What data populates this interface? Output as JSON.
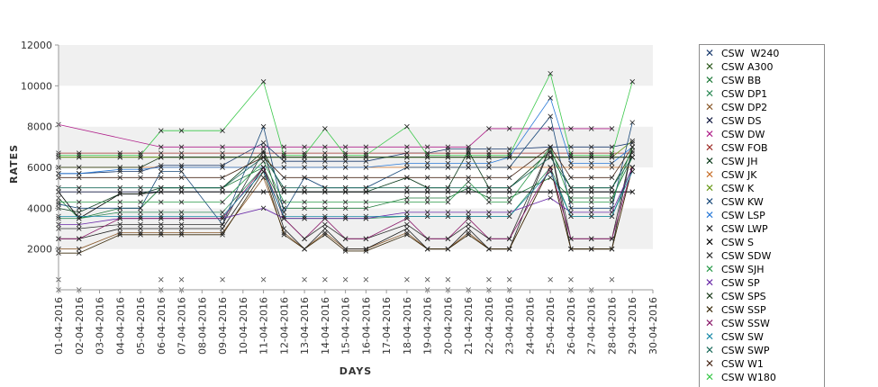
{
  "chart_data": {
    "type": "line",
    "title": "",
    "xlabel": "DAYS",
    "ylabel": "RATES",
    "ylim": [
      0,
      12000
    ],
    "yticks": [
      2000,
      4000,
      6000,
      8000,
      10000,
      12000
    ],
    "grid": "horizontal alternating bands",
    "legend_position": "right",
    "x": [
      "01-04-2016",
      "02-04-2016",
      "03-04-2016",
      "04-04-2016",
      "05-04-2016",
      "06-04-2016",
      "07-04-2016",
      "08-04-2016",
      "09-04-2016",
      "10-04-2016",
      "11-04-2016",
      "12-04-2016",
      "13-04-2016",
      "14-04-2016",
      "15-04-2016",
      "16-04-2016",
      "17-04-2016",
      "18-04-2016",
      "19-04-2016",
      "20-04-2016",
      "21-04-2016",
      "22-04-2016",
      "23-04-2016",
      "24-04-2016",
      "25-04-2016",
      "26-04-2016",
      "27-04-2016",
      "28-04-2016",
      "29-04-2016",
      "30-04-2016"
    ],
    "series": [
      {
        "name": "CSW  W240",
        "color": "#1a3a6e",
        "values": [
          5700,
          5700,
          null,
          5800,
          5800,
          6100,
          6100,
          null,
          6100,
          null,
          7200,
          6300,
          6300,
          6300,
          6300,
          6300,
          null,
          6700,
          6700,
          6900,
          6900,
          6900,
          6900,
          null,
          7000,
          7000,
          7000,
          7000,
          7200,
          null
        ]
      },
      {
        "name": "CSW A300",
        "color": "#2d5a1e",
        "values": [
          6500,
          6500,
          null,
          6500,
          6500,
          6500,
          6500,
          null,
          6500,
          null,
          6500,
          6500,
          6500,
          6500,
          6500,
          6500,
          null,
          6500,
          6500,
          6500,
          6500,
          6500,
          6500,
          null,
          6500,
          6500,
          6500,
          6500,
          6500,
          null
        ]
      },
      {
        "name": "CSW BB",
        "color": "#1f7a3a",
        "values": [
          4500,
          3500,
          null,
          4000,
          4000,
          5000,
          5000,
          null,
          5000,
          null,
          6000,
          4000,
          4000,
          4000,
          4000,
          4000,
          null,
          4500,
          4500,
          4500,
          5000,
          4500,
          4500,
          null,
          5500,
          4500,
          4500,
          4500,
          6500,
          null
        ]
      },
      {
        "name": "CSW DP1",
        "color": "#2e8b57",
        "values": [
          3500,
          3500,
          null,
          3800,
          3800,
          3800,
          3800,
          null,
          3800,
          null,
          6000,
          3500,
          3500,
          3500,
          3500,
          3500,
          null,
          3600,
          3600,
          3600,
          3600,
          3600,
          3600,
          null,
          6000,
          3600,
          3600,
          3600,
          6000,
          null
        ]
      },
      {
        "name": "CSW DP2",
        "color": "#8b5a2b",
        "values": [
          2000,
          2000,
          null,
          2800,
          2800,
          2800,
          2800,
          null,
          2800,
          null,
          5500,
          2800,
          2000,
          2800,
          2000,
          2000,
          null,
          2800,
          2000,
          2000,
          2800,
          2000,
          2000,
          null,
          6000,
          2000,
          2000,
          2000,
          6000,
          null
        ]
      },
      {
        "name": "CSW DS",
        "color": "#101840",
        "values": [
          4800,
          4800,
          null,
          4800,
          4800,
          4800,
          4800,
          null,
          4800,
          null,
          4800,
          4800,
          4800,
          4800,
          4800,
          4800,
          null,
          4800,
          4800,
          4800,
          4800,
          4800,
          4800,
          null,
          4800,
          4800,
          4800,
          4800,
          4800,
          null
        ]
      },
      {
        "name": "CSW DW",
        "color": "#b0208a",
        "values": [
          8100,
          null,
          null,
          null,
          null,
          7000,
          7000,
          null,
          7000,
          null,
          7000,
          7000,
          7000,
          7000,
          7000,
          7000,
          null,
          7000,
          7000,
          7000,
          7000,
          7900,
          7900,
          null,
          7900,
          7900,
          7900,
          7900,
          null,
          null
        ]
      },
      {
        "name": "CSW FOB",
        "color": "#a0302a",
        "values": [
          6700,
          6700,
          null,
          6700,
          6700,
          6700,
          6700,
          null,
          6700,
          null,
          6700,
          6700,
          6700,
          6700,
          6700,
          6700,
          null,
          6700,
          6700,
          6700,
          6700,
          6700,
          6700,
          null,
          6700,
          6700,
          6700,
          6700,
          6700,
          null
        ]
      },
      {
        "name": "CSW JH",
        "color": "#0a3a1a",
        "values": [
          4000,
          3800,
          null,
          4700,
          4700,
          5000,
          5000,
          null,
          5000,
          null,
          6800,
          4800,
          4800,
          4800,
          4800,
          4800,
          null,
          5500,
          5000,
          5000,
          6800,
          5000,
          5000,
          null,
          6800,
          5000,
          5000,
          5000,
          6800,
          null
        ]
      },
      {
        "name": "CSW JK",
        "color": "#c8702a",
        "values": [
          6000,
          6000,
          null,
          6000,
          6000,
          6000,
          6000,
          null,
          6000,
          null,
          6000,
          6000,
          6000,
          6000,
          6000,
          6000,
          null,
          6000,
          6000,
          6000,
          6000,
          6000,
          6000,
          null,
          6000,
          6000,
          6000,
          6000,
          6000,
          null
        ]
      },
      {
        "name": "CSW K",
        "color": "#6a9a1a",
        "values": [
          6500,
          6500,
          null,
          6500,
          6500,
          6500,
          6500,
          null,
          6500,
          null,
          6500,
          6500,
          6500,
          6500,
          6500,
          6500,
          null,
          6500,
          6500,
          6500,
          6500,
          6500,
          6500,
          null,
          6500,
          6500,
          6500,
          6500,
          7300,
          null
        ]
      },
      {
        "name": "CSW KW",
        "color": "#1a4a7a",
        "values": [
          4200,
          4000,
          null,
          4000,
          4000,
          5800,
          5800,
          null,
          3200,
          null,
          8000,
          3800,
          5500,
          5000,
          5000,
          5000,
          null,
          6000,
          6000,
          6000,
          6000,
          6000,
          6000,
          null,
          8500,
          4000,
          4000,
          4000,
          8200,
          null
        ]
      },
      {
        "name": "CSW LSP",
        "color": "#2a7ad8",
        "values": [
          5700,
          5700,
          null,
          5900,
          5900,
          6000,
          6000,
          null,
          6000,
          null,
          6000,
          6000,
          6000,
          6000,
          6000,
          6000,
          null,
          6200,
          6200,
          6200,
          6200,
          6200,
          6500,
          null,
          9400,
          6200,
          6200,
          6200,
          7000,
          null
        ]
      },
      {
        "name": "CSW LWP",
        "color": "#202020",
        "values": [
          2500,
          2500,
          null,
          3000,
          3000,
          3000,
          3000,
          null,
          3000,
          null,
          6000,
          3000,
          2000,
          3000,
          2000,
          2000,
          null,
          3000,
          2000,
          2000,
          3000,
          2000,
          2000,
          null,
          7000,
          2000,
          2000,
          2000,
          7000,
          null
        ]
      },
      {
        "name": "CSW S",
        "color": "#000000",
        "values": [
          4800,
          3500,
          null,
          4700,
          4700,
          4800,
          4800,
          null,
          4800,
          null,
          4800,
          4800,
          4800,
          4800,
          4800,
          4800,
          null,
          4800,
          4800,
          4800,
          4800,
          4800,
          4800,
          null,
          4800,
          4800,
          4800,
          4800,
          4800,
          null
        ]
      },
      {
        "name": "CSW SDW",
        "color": "#303030",
        "values": [
          3000,
          3000,
          null,
          3200,
          3200,
          3200,
          3200,
          null,
          3200,
          null,
          6800,
          3500,
          2500,
          3200,
          2500,
          2500,
          null,
          3200,
          2500,
          2500,
          3200,
          2500,
          2500,
          null,
          7000,
          2500,
          2500,
          2500,
          7000,
          null
        ]
      },
      {
        "name": "CSW SJH",
        "color": "#2a9a4a",
        "values": [
          4300,
          4300,
          null,
          4300,
          4300,
          4300,
          4300,
          null,
          4300,
          null,
          6300,
          4300,
          4300,
          4300,
          4300,
          4300,
          null,
          4300,
          4300,
          4300,
          5300,
          4300,
          4300,
          null,
          7000,
          4300,
          4300,
          4300,
          7000,
          null
        ]
      },
      {
        "name": "CSW SP",
        "color": "#6a2aa8",
        "values": [
          3200,
          3200,
          null,
          3500,
          3500,
          3500,
          3500,
          null,
          3500,
          null,
          4000,
          3500,
          3500,
          3500,
          3500,
          3500,
          null,
          3800,
          3800,
          3800,
          3800,
          3800,
          3800,
          null,
          4500,
          3800,
          3800,
          3800,
          6000,
          null
        ]
      },
      {
        "name": "CSW SPS",
        "color": "#1a3a1a",
        "values": [
          6000,
          6000,
          null,
          6000,
          6000,
          6500,
          6500,
          null,
          6500,
          null,
          6500,
          6500,
          6500,
          6500,
          6500,
          6500,
          null,
          6500,
          6500,
          6500,
          6500,
          6500,
          6500,
          null,
          6500,
          6500,
          6500,
          6500,
          6500,
          null
        ]
      },
      {
        "name": "CSW SSP",
        "color": "#3a2a0a",
        "values": [
          1800,
          1800,
          null,
          2700,
          2700,
          2700,
          2700,
          null,
          2700,
          null,
          5800,
          2700,
          2000,
          2700,
          1900,
          1900,
          null,
          2700,
          2000,
          2000,
          2700,
          2000,
          2000,
          null,
          6000,
          2000,
          2000,
          2000,
          6000,
          null
        ]
      },
      {
        "name": "CSW SSW",
        "color": "#8a1a6a",
        "values": [
          2500,
          2500,
          null,
          3500,
          3500,
          3500,
          3500,
          null,
          3500,
          null,
          6000,
          3500,
          2500,
          3500,
          2500,
          2500,
          null,
          3500,
          2500,
          2500,
          3500,
          2500,
          2500,
          null,
          6000,
          2500,
          2500,
          2500,
          6000,
          null
        ]
      },
      {
        "name": "CSW SW",
        "color": "#1a8aa8",
        "values": [
          3600,
          3600,
          null,
          3600,
          3600,
          3600,
          3600,
          null,
          3600,
          null,
          5800,
          3600,
          3600,
          3600,
          3600,
          3600,
          null,
          3600,
          3600,
          3600,
          3600,
          3600,
          3600,
          null,
          5800,
          3600,
          3600,
          3600,
          5800,
          null
        ]
      },
      {
        "name": "CSW SWP",
        "color": "#1a6a5a",
        "values": [
          5000,
          5000,
          null,
          5000,
          5000,
          5000,
          5000,
          null,
          5000,
          null,
          6500,
          5000,
          5000,
          5000,
          5000,
          5000,
          null,
          5000,
          5000,
          5000,
          5000,
          5000,
          5000,
          null,
          6500,
          5000,
          5000,
          5000,
          6500,
          null
        ]
      },
      {
        "name": "CSW W1",
        "color": "#4a2a1a",
        "values": [
          5500,
          5500,
          null,
          5500,
          5500,
          5500,
          5500,
          null,
          5500,
          null,
          6500,
          5500,
          5500,
          5500,
          5500,
          5500,
          null,
          5500,
          5500,
          5500,
          5500,
          5500,
          5500,
          null,
          7000,
          5500,
          5500,
          5500,
          7000,
          null
        ]
      },
      {
        "name": "CSW W180",
        "color": "#3ac84a",
        "values": [
          6600,
          6600,
          null,
          6600,
          6600,
          7800,
          7800,
          null,
          7800,
          null,
          10200,
          6600,
          6600,
          7900,
          6600,
          6600,
          null,
          8000,
          6600,
          6600,
          6600,
          6600,
          6600,
          null,
          10600,
          6600,
          6600,
          6600,
          10200,
          null
        ]
      },
      {
        "name": "",
        "color": "#8a8a8a",
        "values": [
          500,
          null,
          null,
          null,
          null,
          500,
          500,
          null,
          500,
          null,
          500,
          null,
          500,
          500,
          500,
          500,
          null,
          500,
          500,
          500,
          null,
          500,
          500,
          null,
          500,
          500,
          null,
          500,
          null,
          null
        ]
      },
      {
        "name": "",
        "color": "#8a8a8a",
        "values": [
          0,
          0,
          null,
          null,
          null,
          0,
          0,
          null,
          null,
          null,
          null,
          null,
          null,
          null,
          null,
          null,
          null,
          null,
          0,
          0,
          0,
          0,
          0,
          null,
          null,
          0,
          0,
          null,
          null,
          null
        ]
      }
    ]
  }
}
